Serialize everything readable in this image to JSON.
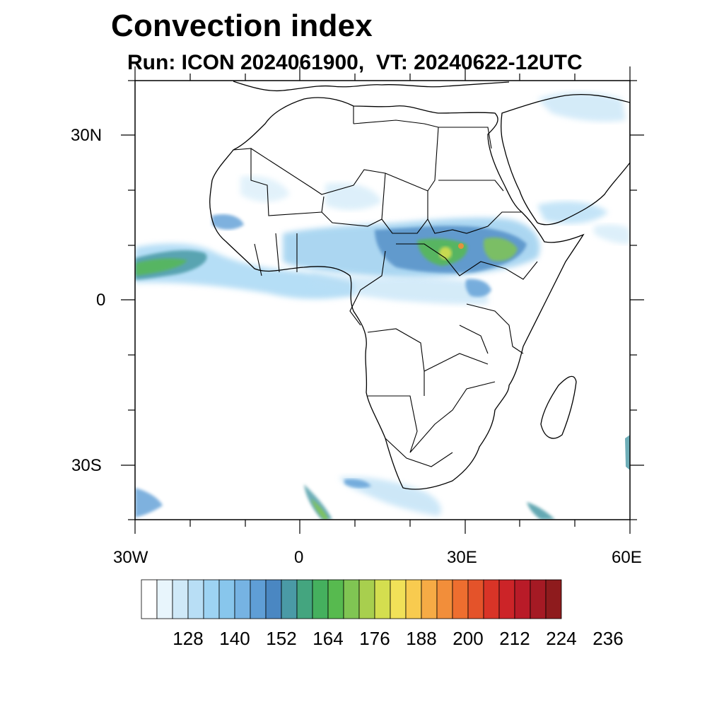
{
  "title": "Convection index",
  "subtitle": "Run: ICON 2024061900,  VT: 20240622-12UTC",
  "map": {
    "region": "Africa",
    "lon_range": [
      "30W",
      "60E"
    ],
    "lat_range": [
      "40S",
      "40N"
    ],
    "lat_labels": [
      "30N",
      "0",
      "30S"
    ],
    "lon_labels": [
      "30W",
      "0",
      "30E",
      "60E"
    ]
  },
  "legend": {
    "labels": [
      "128",
      "140",
      "152",
      "164",
      "176",
      "188",
      "200",
      "212",
      "224",
      "236"
    ],
    "colors": [
      "#ffffff",
      "#e8f5fc",
      "#cfe9f8",
      "#b8def5",
      "#9dd3f3",
      "#88c6ec",
      "#76b3e3",
      "#5f9ed6",
      "#4a87c2",
      "#4a9aa6",
      "#44a57f",
      "#45b05e",
      "#57ba4f",
      "#80c553",
      "#a8cf4e",
      "#d4de4f",
      "#f1e158",
      "#f8cb4f",
      "#f6ab45",
      "#f28e3a",
      "#ee6e2f",
      "#e4532a",
      "#d93427",
      "#cc2428",
      "#b91b28",
      "#a51a24",
      "#8e1b1d"
    ]
  }
}
